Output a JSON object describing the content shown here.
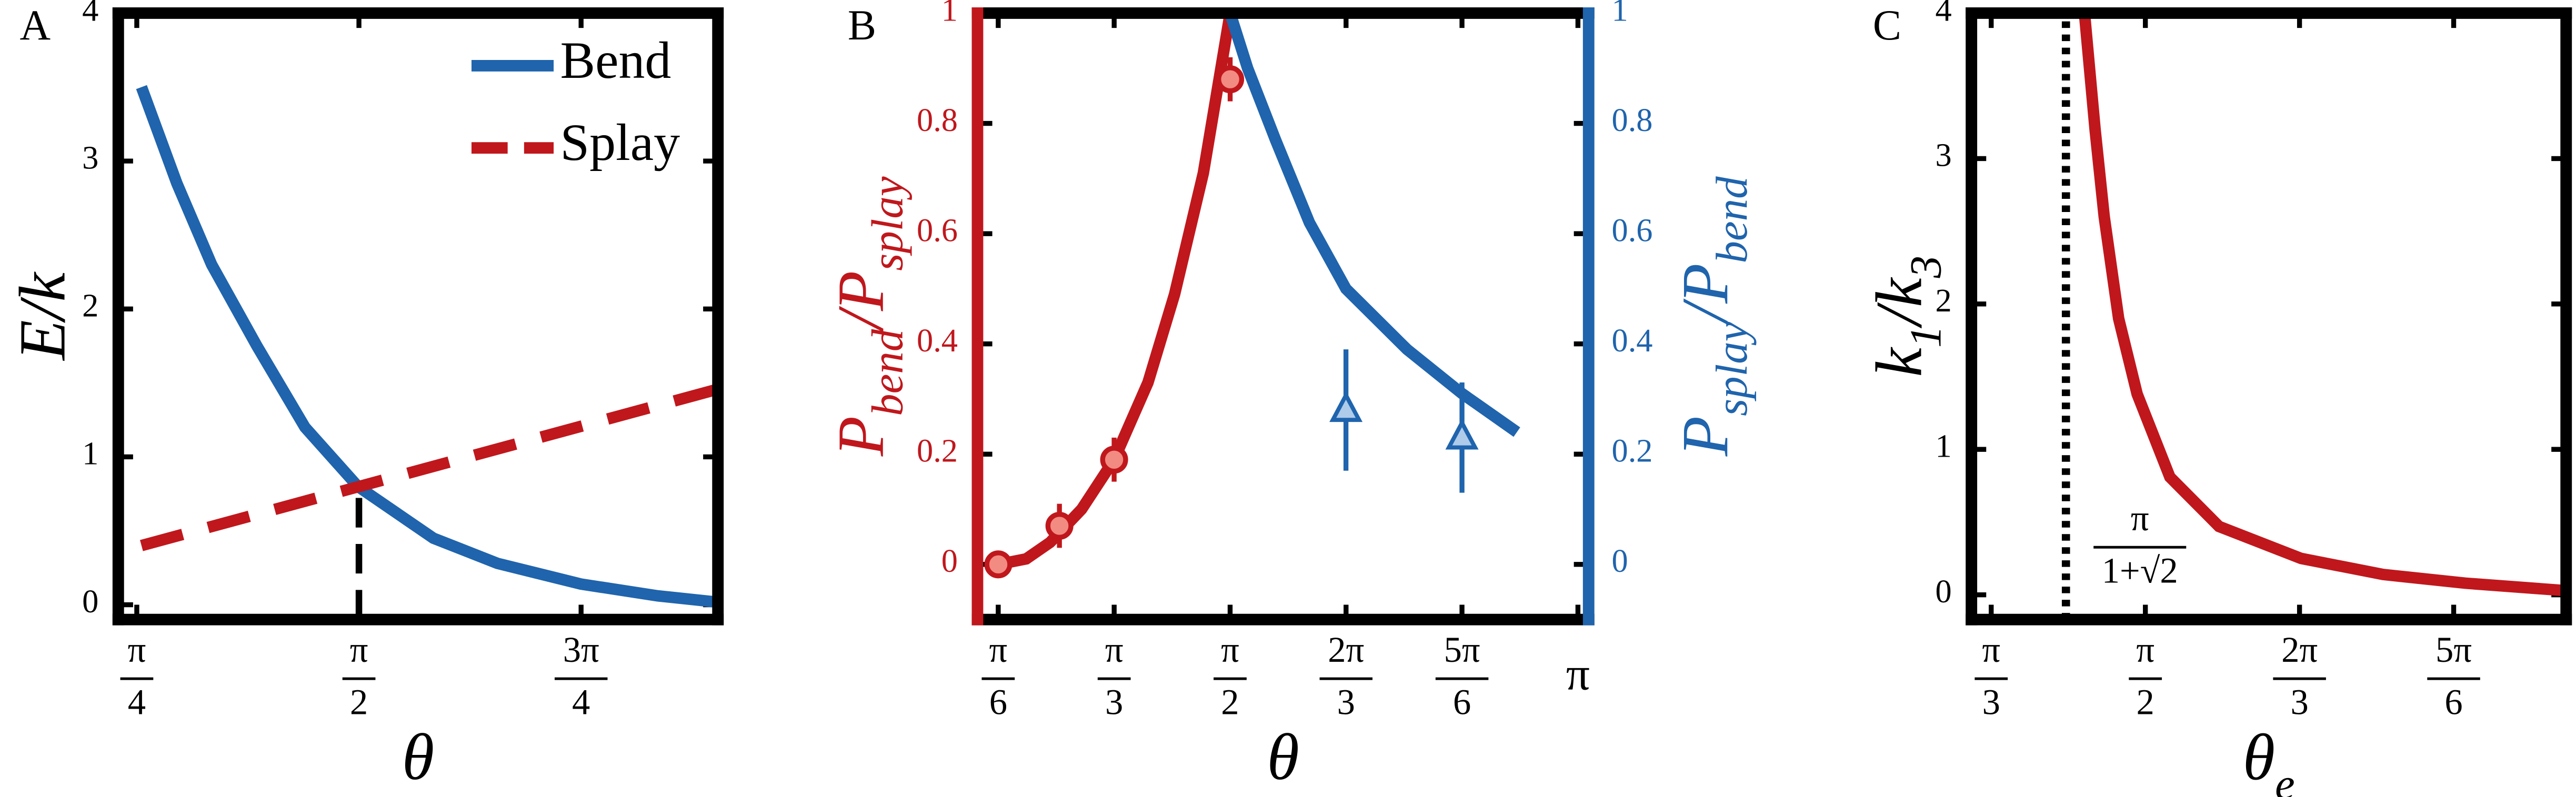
{
  "chart_data": [
    {
      "type": "line",
      "panel_label": "A",
      "x_label": "θ",
      "y_label": "E/k",
      "xlim": [
        0.72,
        2.84
      ],
      "ylim": [
        -0.1,
        4
      ],
      "xticks": [
        {
          "value": 0.7854,
          "label": [
            "π",
            "4"
          ]
        },
        {
          "value": 1.5708,
          "label": [
            "π",
            "2"
          ]
        },
        {
          "value": 2.3562,
          "label": [
            "3π",
            "4"
          ]
        }
      ],
      "yticks": [
        0,
        1,
        2,
        3,
        4
      ],
      "legend": "upper right",
      "series": [
        {
          "name": "Bend",
          "color": "#1f64ad",
          "linestyle": "solid",
          "x": [
            0.802,
            0.927,
            1.05,
            1.21,
            1.38,
            1.567,
            1.834,
            2.06,
            2.355,
            2.627,
            2.825
          ],
          "values": [
            3.5,
            2.85,
            2.3,
            1.75,
            1.2,
            0.8,
            0.45,
            0.28,
            0.14,
            0.06,
            0.02
          ]
        },
        {
          "name": "Splay",
          "color": "#c0171c",
          "linestyle": "dashed",
          "x": [
            0.802,
            2.825
          ],
          "values": [
            0.4,
            1.45
          ]
        }
      ],
      "vline": {
        "x": 1.5708,
        "y": 0.8
      }
    },
    {
      "type": "line",
      "panel_label": "B",
      "x_label": "θ",
      "y_label": [
        "P",
        {
          "sub": "bend"
        },
        "/P",
        {
          "sub": "splay"
        }
      ],
      "y2_label": [
        "P",
        {
          "sub": "splay"
        },
        "/P",
        {
          "sub": "bend"
        }
      ],
      "y_color": "#c0171c",
      "y2_color": "#1f64ad",
      "xlim": [
        0.43,
        3.19
      ],
      "ylim": [
        -0.1,
        1
      ],
      "y2lim": [
        -0.1,
        1
      ],
      "xticks": [
        {
          "value": 0.5236,
          "label": [
            "π",
            "6"
          ]
        },
        {
          "value": 1.0472,
          "label": [
            "π",
            "3"
          ]
        },
        {
          "value": 1.5708,
          "label": [
            "π",
            "2"
          ]
        },
        {
          "value": 2.0944,
          "label": [
            "2π",
            "3"
          ]
        },
        {
          "value": 2.618,
          "label": [
            "5π",
            "6"
          ]
        },
        {
          "value": 3.1416,
          "label": "π"
        }
      ],
      "yticks": [
        0,
        0.2,
        0.4,
        0.6,
        0.8,
        1
      ],
      "y2ticks": [
        0,
        0.2,
        0.4,
        0.6,
        0.8,
        1
      ],
      "series": [
        {
          "color": "#c0171c",
          "linestyle": "solid",
          "x": [
            0.524,
            0.65,
            0.758,
            0.9,
            1.047,
            1.2,
            1.32,
            1.45,
            1.571
          ],
          "values": [
            0,
            0.01,
            0.04,
            0.1,
            0.19,
            0.33,
            0.49,
            0.71,
            1.0
          ]
        },
        {
          "color": "#1f64ad",
          "linestyle": "solid",
          "axis": "y2",
          "x": [
            1.571,
            1.65,
            1.776,
            1.929,
            2.094,
            2.37,
            2.618,
            2.866
          ],
          "values": [
            1.0,
            0.9,
            0.77,
            0.62,
            0.5,
            0.39,
            0.31,
            0.24
          ]
        },
        {
          "color": "#c0171c",
          "linestyle": "none",
          "marker": "circle",
          "fill": "#f28b82",
          "x": [
            0.524,
            0.8,
            1.047,
            1.571
          ],
          "values": [
            0,
            0.07,
            0.19,
            0.88
          ],
          "errors": [
            0.01,
            0.04,
            0.04,
            0.04
          ]
        },
        {
          "color": "#1f64ad",
          "linestyle": "none",
          "marker": "triangle",
          "fill": "#aecbea",
          "axis": "y2",
          "x": [
            2.094,
            2.618
          ],
          "values": [
            0.28,
            0.23
          ],
          "errors": [
            0.11,
            0.1
          ]
        }
      ]
    },
    {
      "type": "line",
      "panel_label": "C",
      "x_label": [
        "θ",
        {
          "sub": "e"
        }
      ],
      "y_label": [
        "k",
        {
          "sub": "1"
        },
        "/k",
        {
          "sub": "3"
        }
      ],
      "xlim": [
        0.98,
        3.0
      ],
      "ylim": [
        -0.17,
        4
      ],
      "xticks": [
        {
          "value": 1.0472,
          "label": [
            "π",
            "3"
          ]
        },
        {
          "value": 1.5708,
          "label": [
            "π",
            "2"
          ]
        },
        {
          "value": 2.0944,
          "label": [
            "2π",
            "3"
          ]
        },
        {
          "value": 2.618,
          "label": [
            "5π",
            "6"
          ]
        }
      ],
      "yticks": [
        0,
        1,
        2,
        3,
        4
      ],
      "series": [
        {
          "color": "#c0171c",
          "linestyle": "solid",
          "x": [
            1.364,
            1.4,
            1.431,
            1.48,
            1.543,
            1.654,
            1.821,
            2.1,
            2.378,
            2.657,
            2.99
          ],
          "values": [
            4,
            3.2,
            2.6,
            1.9,
            1.38,
            0.81,
            0.47,
            0.25,
            0.14,
            0.08,
            0.03
          ]
        }
      ],
      "vline": {
        "x": 1.301,
        "label": [
          "π",
          "1+√2"
        ]
      }
    }
  ]
}
